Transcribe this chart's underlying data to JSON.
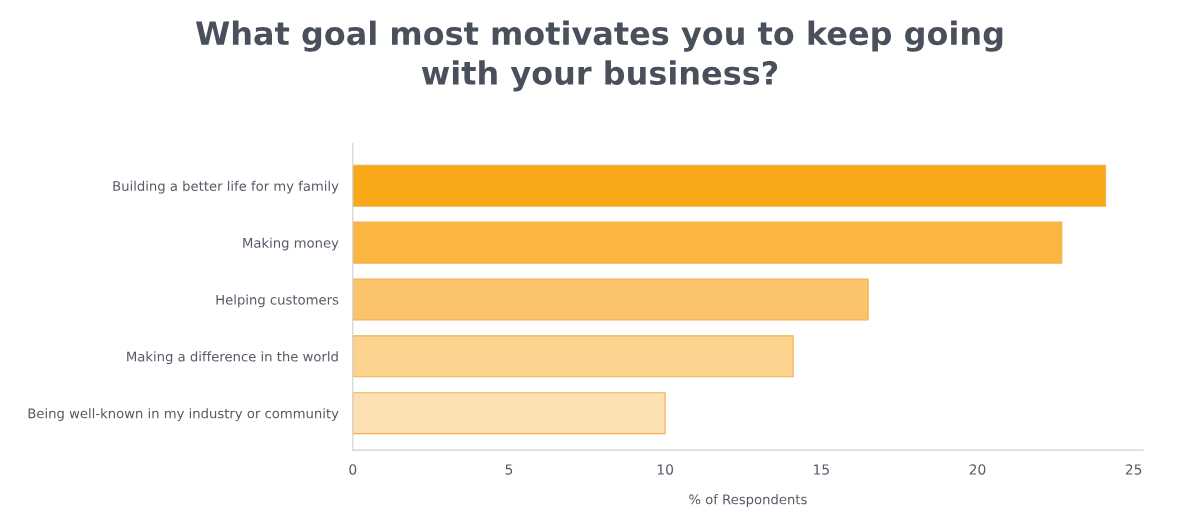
{
  "chart_data": {
    "type": "bar",
    "orientation": "horizontal",
    "title": "What goal most motivates you to keep going\nwith your business?",
    "xlabel": "% of Respondents",
    "categories": [
      "Building a better life for my family",
      "Making money",
      "Helping customers",
      "Making a difference in the world",
      "Being well-known in my industry or community"
    ],
    "values": [
      24.1,
      22.7,
      16.5,
      14.1,
      10.0
    ],
    "colors": [
      "#f9a818",
      "#fab640",
      "#fbc46a",
      "#fcd28f",
      "#fde0b4"
    ],
    "xlim": [
      0,
      25.3
    ],
    "xticks": [
      0,
      5,
      10,
      15,
      20,
      25
    ],
    "grid": false,
    "legend": false
  }
}
